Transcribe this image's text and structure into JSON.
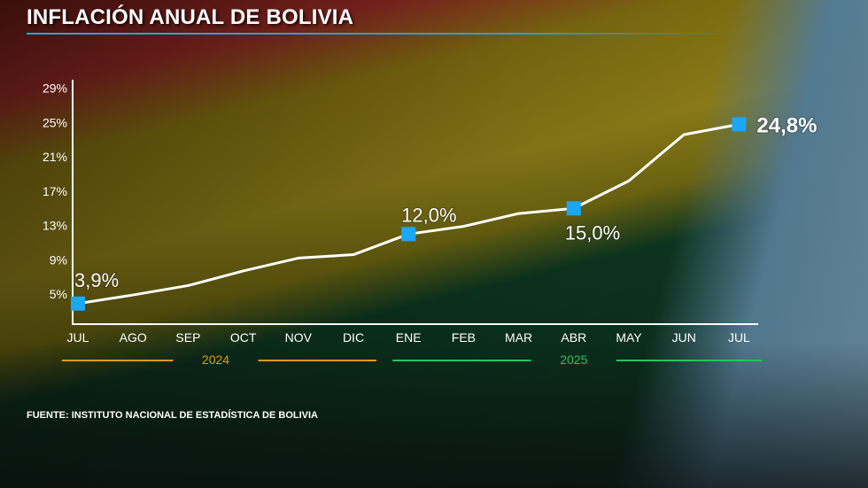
{
  "header": {
    "title": "INFLACIÓN ANUAL DE BOLIVIA"
  },
  "footer": {
    "source": "FUENTE: INSTITUTO NACIONAL DE ESTADÍSTICA DE BOLIVIA"
  },
  "colors": {
    "marker": "#1aa7f5",
    "line": "#ffffff",
    "year_2024": "#e89a12",
    "year_2025": "#22c55e",
    "title_rule": "#2f9ed8"
  },
  "chart_data": {
    "type": "line",
    "title": "INFLACIÓN ANUAL DE BOLIVIA",
    "xlabel": "",
    "ylabel": "",
    "categories": [
      "JUL",
      "AGO",
      "SEP",
      "OCT",
      "NOV",
      "DIC",
      "ENE",
      "FEB",
      "MAR",
      "ABR",
      "MAY",
      "JUN",
      "JUL"
    ],
    "year_groups": [
      {
        "label": "2024",
        "from": 0,
        "to": 5
      },
      {
        "label": "2025",
        "from": 6,
        "to": 12
      }
    ],
    "values": [
      3.9,
      4.9,
      6.0,
      7.7,
      9.2,
      9.6,
      12.0,
      12.9,
      14.4,
      15.0,
      18.2,
      23.6,
      24.8
    ],
    "highlighted": [
      {
        "index": 0,
        "label": "3,9%"
      },
      {
        "index": 6,
        "label": "12,0%"
      },
      {
        "index": 9,
        "label": "15,0%"
      },
      {
        "index": 12,
        "label": "24,8%"
      }
    ],
    "yticks": [
      "5%",
      "9%",
      "13%",
      "17%",
      "21%",
      "25%",
      "29%"
    ],
    "ytick_values": [
      5,
      9,
      13,
      17,
      21,
      25,
      29
    ],
    "ylim": [
      1.5,
      30
    ],
    "grid": false,
    "legend": "none"
  }
}
